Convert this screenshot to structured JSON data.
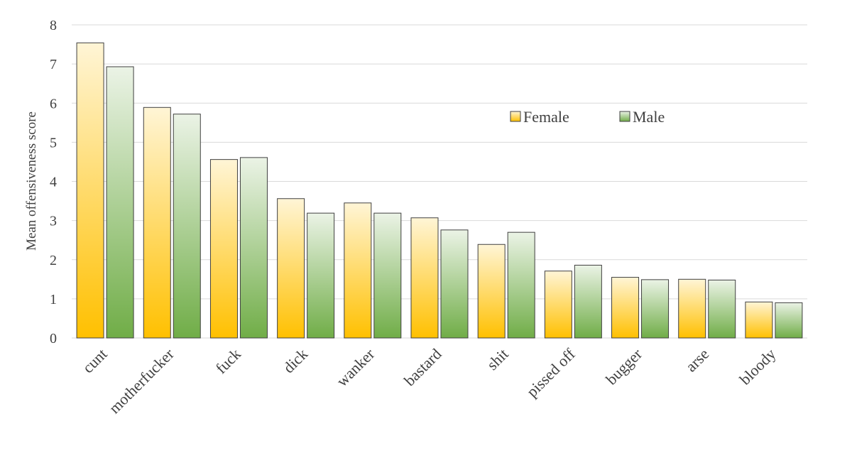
{
  "chart_data": {
    "type": "bar",
    "title": "",
    "xlabel": "",
    "ylabel": "Mean offensiveness score",
    "ylim": [
      0,
      8
    ],
    "yticks": [
      0,
      1,
      2,
      3,
      4,
      5,
      6,
      7,
      8
    ],
    "grid": true,
    "legend_position": "upper-right",
    "categories": [
      "cunt",
      "motherfucker",
      "fuck",
      "dick",
      "wanker",
      "bastard",
      "shit",
      "pissed off",
      "bugger",
      "arse",
      "bloody"
    ],
    "series": [
      {
        "name": "Female",
        "color_top": "#fff5d6",
        "color_bottom": "#ffc000",
        "values": [
          7.54,
          5.89,
          4.56,
          3.56,
          3.45,
          3.07,
          2.39,
          1.71,
          1.55,
          1.5,
          0.92
        ]
      },
      {
        "name": "Male",
        "color_top": "#ebf3e6",
        "color_bottom": "#70ad47",
        "values": [
          6.93,
          5.72,
          4.61,
          3.19,
          3.19,
          2.76,
          2.7,
          1.86,
          1.49,
          1.48,
          0.9
        ]
      }
    ]
  }
}
